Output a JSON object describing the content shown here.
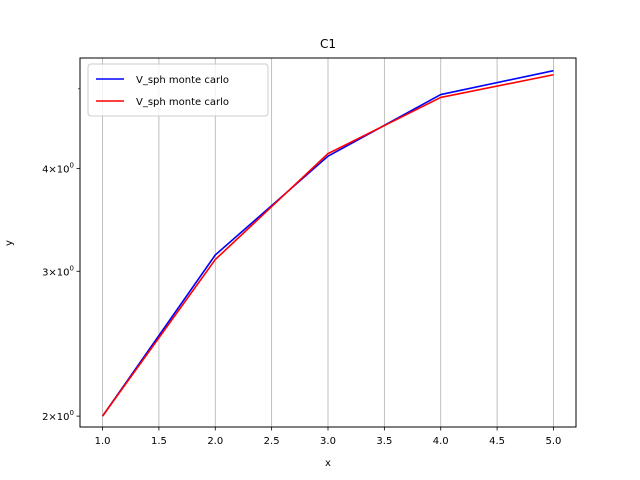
{
  "chart_data": {
    "type": "line",
    "title": "C1",
    "xlabel": "x",
    "ylabel": "y",
    "xlim": [
      0.8,
      5.2
    ],
    "ylim": [
      1.94,
      5.45
    ],
    "yscale": "log",
    "grid": "vertical",
    "legend_position": "top-left",
    "x_ticks": [
      1.0,
      1.5,
      2.0,
      2.5,
      3.0,
      3.5,
      4.0,
      4.5,
      5.0
    ],
    "x_tick_labels": [
      "1.0",
      "1.5",
      "2.0",
      "2.5",
      "3.0",
      "3.5",
      "4.0",
      "4.5",
      "5.0"
    ],
    "y_ticks": [
      {
        "value": 2,
        "coef": "2",
        "exp": "0"
      },
      {
        "value": 3,
        "coef": "3",
        "exp": "0"
      },
      {
        "value": 4,
        "coef": "4",
        "exp": "0"
      }
    ],
    "y_minor_ticks": [
      5
    ],
    "x": [
      1,
      2,
      3,
      4,
      5
    ],
    "series": [
      {
        "name": "V_sph monte carlo",
        "color": "#0000ff",
        "values": [
          2.0,
          3.14,
          4.14,
          4.92,
          5.26
        ]
      },
      {
        "name": "V_sph monte carlo",
        "color": "#ff0000",
        "values": [
          2.0,
          3.1,
          4.17,
          4.88,
          5.2
        ]
      }
    ]
  }
}
